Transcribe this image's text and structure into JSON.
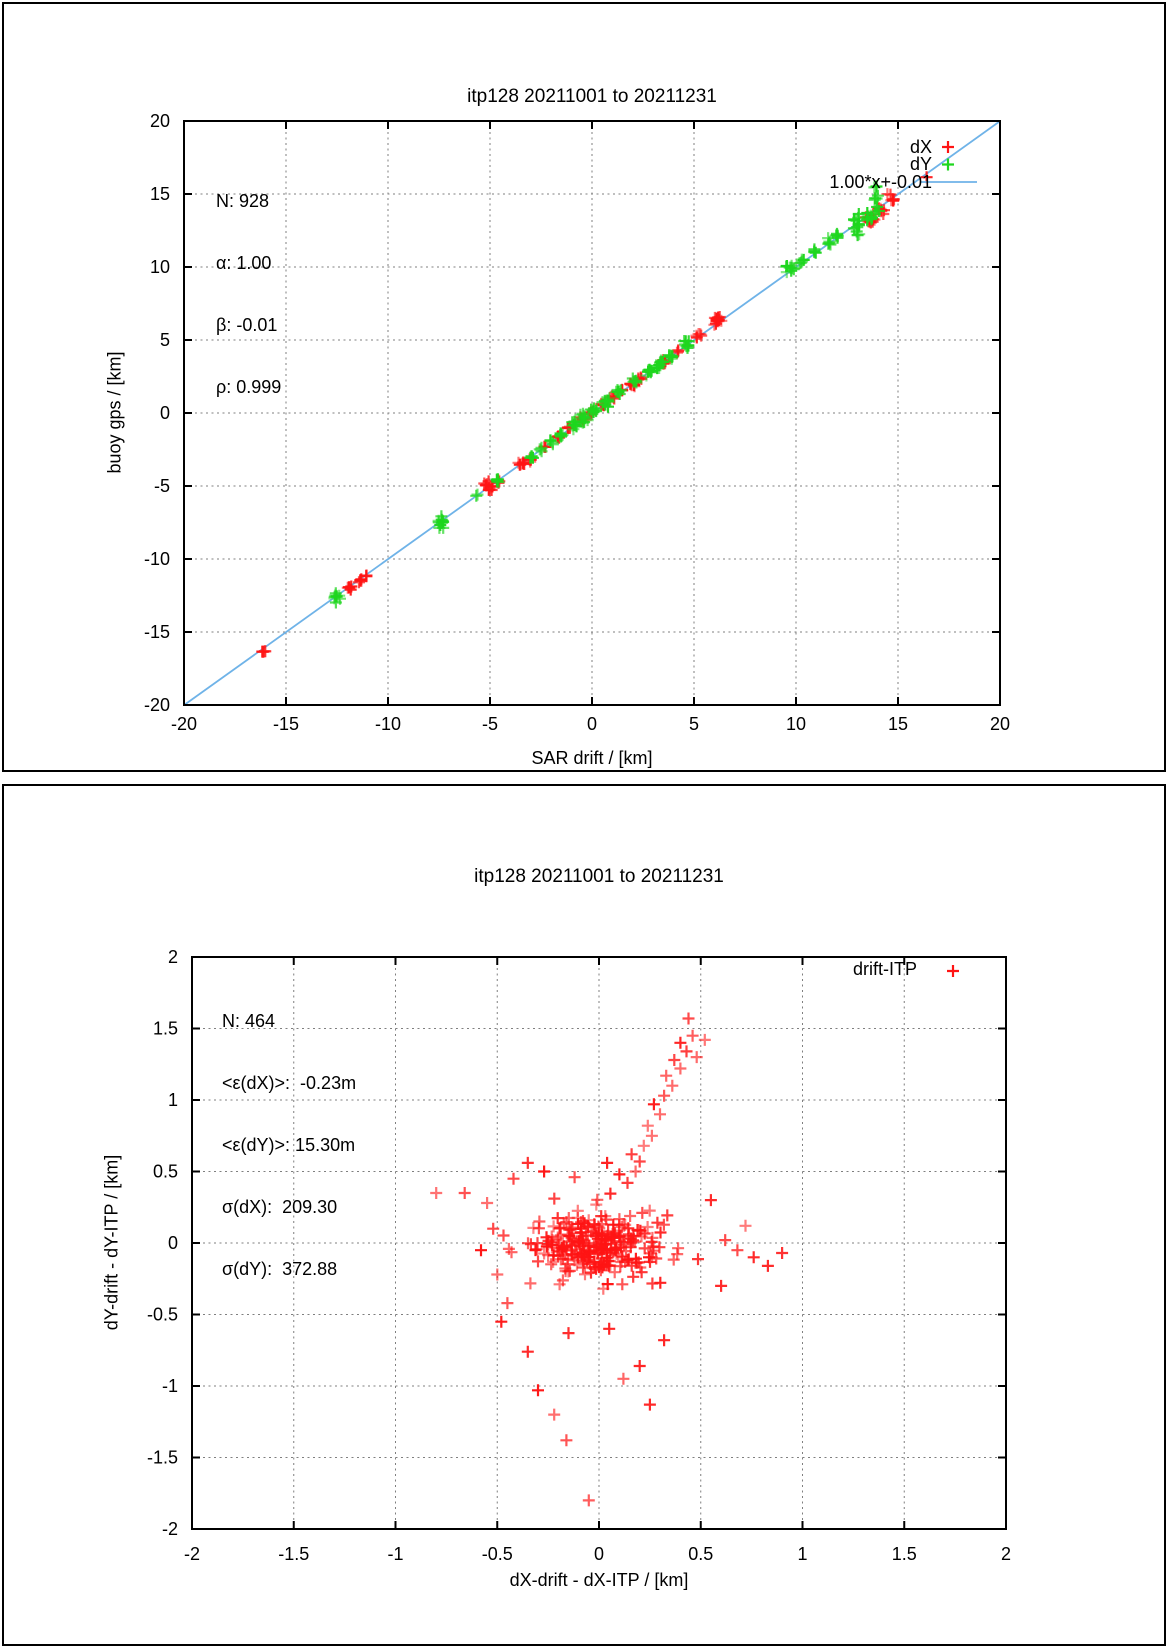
{
  "page": {
    "background": "#ffffff",
    "border_color": "#000000"
  },
  "colors": {
    "red": "#ff1414",
    "green": "#1ed61e",
    "fit": "#6fb3e8",
    "grid": "#7f7f7f",
    "axis": "#000000",
    "text": "#000000"
  },
  "chart_data": [
    {
      "type": "scatter",
      "title": "itp128 20211001 to 20211231",
      "xlabel": "SAR drift / [km]",
      "ylabel": "buoy gps / [km]",
      "xlim": [
        -20,
        20
      ],
      "ylim": [
        -20,
        20
      ],
      "xticks": [
        -20,
        -15,
        -10,
        -5,
        0,
        5,
        10,
        15,
        20
      ],
      "yticks": [
        -20,
        -15,
        -10,
        -5,
        0,
        5,
        10,
        15,
        20
      ],
      "grid": true,
      "stats": [
        "N: 928",
        "α: 1.00",
        "β: -0.01",
        "ρ: 0.999"
      ],
      "legend": [
        {
          "label": "dX",
          "color_key": "red",
          "sample": "point"
        },
        {
          "label": "dY",
          "color_key": "green",
          "sample": "point"
        },
        {
          "label": "1.00*x+-0.01",
          "color_key": "fit",
          "sample": "line"
        }
      ],
      "fit_line": {
        "slope": 1.0,
        "intercept": -0.01
      },
      "series": [
        {
          "name": "dX",
          "color_key": "red",
          "clusters": [
            [
              -16.1,
              -16.3,
              4,
              0.15,
              0.2
            ],
            [
              -11.9,
              -12.0,
              6,
              0.2,
              0.25
            ],
            [
              -11.4,
              -11.5,
              5,
              0.2,
              0.2
            ],
            [
              -11.05,
              -11.1,
              3,
              0.1,
              0.15
            ],
            [
              -5.05,
              -5.0,
              12,
              0.3,
              0.35
            ],
            [
              -4.6,
              -4.75,
              4,
              0.15,
              0.2
            ],
            [
              -3.5,
              -3.45,
              7,
              0.25,
              0.2
            ],
            [
              -3.1,
              -3.2,
              4,
              0.15,
              0.15
            ],
            [
              -2.3,
              -2.3,
              3,
              0.1,
              0.15
            ],
            [
              -1.7,
              -1.7,
              3,
              0.12,
              0.12
            ],
            [
              -1.1,
              -1.05,
              4,
              0.15,
              0.15
            ],
            [
              -0.5,
              -0.45,
              5,
              0.15,
              0.2
            ],
            [
              0.0,
              0.05,
              5,
              0.2,
              0.2
            ],
            [
              0.5,
              0.55,
              5,
              0.15,
              0.2
            ],
            [
              1.0,
              1.05,
              5,
              0.2,
              0.2
            ],
            [
              1.5,
              1.55,
              4,
              0.15,
              0.15
            ],
            [
              1.95,
              2.0,
              6,
              0.2,
              0.25
            ],
            [
              2.35,
              2.4,
              4,
              0.15,
              0.15
            ],
            [
              3.45,
              3.5,
              5,
              0.2,
              0.25
            ],
            [
              4.2,
              4.25,
              4,
              0.15,
              0.2
            ],
            [
              5.3,
              5.35,
              5,
              0.2,
              0.25
            ],
            [
              6.2,
              6.3,
              14,
              0.3,
              0.35
            ],
            [
              13.6,
              13.3,
              12,
              0.35,
              0.45
            ],
            [
              14.2,
              13.9,
              6,
              0.25,
              0.3
            ],
            [
              14.75,
              14.55,
              5,
              0.2,
              0.3
            ],
            [
              14.55,
              14.95,
              2,
              0.1,
              0.1
            ],
            [
              16.4,
              16.15,
              1,
              0,
              0
            ]
          ],
          "points": []
        },
        {
          "name": "dY",
          "color_key": "green",
          "clusters": [
            [
              -12.55,
              -12.65,
              9,
              0.2,
              0.45
            ],
            [
              -7.4,
              -7.5,
              11,
              0.2,
              0.5
            ],
            [
              -5.6,
              -5.6,
              2,
              0.1,
              0.15
            ],
            [
              -4.65,
              -4.7,
              6,
              0.15,
              0.3
            ],
            [
              -3.0,
              -3.05,
              4,
              0.12,
              0.2
            ],
            [
              -2.5,
              -2.5,
              4,
              0.12,
              0.2
            ],
            [
              -1.95,
              -1.95,
              4,
              0.12,
              0.2
            ],
            [
              -1.55,
              -1.55,
              6,
              0.15,
              0.3
            ],
            [
              -0.9,
              -0.85,
              9,
              0.2,
              0.35
            ],
            [
              -0.4,
              -0.35,
              11,
              0.2,
              0.35
            ],
            [
              0.1,
              0.15,
              9,
              0.2,
              0.3
            ],
            [
              0.7,
              0.75,
              11,
              0.2,
              0.35
            ],
            [
              1.3,
              1.35,
              7,
              0.15,
              0.3
            ],
            [
              2.1,
              2.15,
              6,
              0.15,
              0.25
            ],
            [
              2.8,
              2.85,
              9,
              0.2,
              0.35
            ],
            [
              3.3,
              3.35,
              11,
              0.2,
              0.4
            ],
            [
              3.9,
              3.95,
              7,
              0.15,
              0.3
            ],
            [
              4.7,
              4.75,
              9,
              0.2,
              0.35
            ],
            [
              9.7,
              9.9,
              9,
              0.2,
              0.4
            ],
            [
              10.25,
              10.45,
              5,
              0.15,
              0.3
            ],
            [
              10.9,
              11.0,
              4,
              0.12,
              0.25
            ],
            [
              11.6,
              11.7,
              6,
              0.15,
              0.3
            ],
            [
              12.0,
              12.15,
              5,
              0.12,
              0.25
            ],
            [
              12.95,
              12.9,
              14,
              0.3,
              0.8
            ],
            [
              13.6,
              13.4,
              8,
              0.25,
              0.6
            ],
            [
              13.95,
              14.3,
              8,
              0.2,
              0.8
            ],
            [
              13.9,
              15.45,
              2,
              0.1,
              0.15
            ]
          ],
          "points": []
        }
      ]
    },
    {
      "type": "scatter",
      "title": "itp128 20211001 to 20211231",
      "xlabel": "dX-drift - dX-ITP / [km]",
      "ylabel": "dY-drift - dY-ITP / [km]",
      "xlim": [
        -2,
        2
      ],
      "ylim": [
        -2,
        2
      ],
      "xticks": [
        -2,
        -1.5,
        -1,
        -0.5,
        0,
        0.5,
        1,
        1.5,
        2
      ],
      "yticks": [
        -2,
        -1.5,
        -1,
        -0.5,
        0,
        0.5,
        1,
        1.5,
        2
      ],
      "grid": true,
      "stats": [
        "N: 464",
        "<ε(dX)>:  -0.23m",
        "<ε(dY)>: 15.30m",
        "σ(dX):  209.30",
        "σ(dY):  372.88"
      ],
      "legend": [
        {
          "label": "drift-ITP",
          "color_key": "red",
          "sample": "point"
        }
      ],
      "series": [
        {
          "name": "drift-ITP",
          "color_key": "red",
          "clusters": [
            [
              -0.01,
              -0.02,
              150,
              0.28,
              0.22
            ],
            [
              0.0,
              0.0,
              80,
              0.5,
              0.38
            ],
            [
              0.02,
              -0.03,
              50,
              0.4,
              0.3
            ]
          ],
          "points": [
            [
              0.14,
              0.42
            ],
            [
              0.18,
              0.5
            ],
            [
              0.2,
              0.57
            ],
            [
              0.16,
              0.62
            ],
            [
              0.22,
              0.68
            ],
            [
              0.26,
              0.75
            ],
            [
              0.24,
              0.82
            ],
            [
              0.3,
              0.9
            ],
            [
              0.27,
              0.97
            ],
            [
              0.32,
              1.03
            ],
            [
              0.36,
              1.1
            ],
            [
              0.33,
              1.17
            ],
            [
              0.4,
              1.22
            ],
            [
              0.37,
              1.28
            ],
            [
              0.43,
              1.34
            ],
            [
              0.4,
              1.4
            ],
            [
              0.46,
              1.45
            ],
            [
              0.52,
              1.42
            ],
            [
              0.44,
              1.57
            ],
            [
              0.48,
              1.3
            ],
            [
              -0.8,
              0.35
            ],
            [
              -0.66,
              0.35
            ],
            [
              -0.55,
              0.28
            ],
            [
              -0.52,
              0.1
            ],
            [
              -0.58,
              -0.05
            ],
            [
              -0.5,
              -0.22
            ],
            [
              -0.45,
              -0.42
            ],
            [
              -0.42,
              0.45
            ],
            [
              0.55,
              0.3
            ],
            [
              0.62,
              0.02
            ],
            [
              0.68,
              -0.05
            ],
            [
              0.76,
              -0.1
            ],
            [
              0.9,
              -0.07
            ],
            [
              0.83,
              -0.16
            ],
            [
              0.6,
              -0.3
            ],
            [
              0.72,
              0.12
            ],
            [
              -0.05,
              -1.8
            ],
            [
              -0.16,
              -1.38
            ],
            [
              -0.22,
              -1.2
            ],
            [
              0.25,
              -1.13
            ],
            [
              -0.3,
              -1.03
            ],
            [
              0.12,
              -0.95
            ],
            [
              0.2,
              -0.86
            ],
            [
              -0.35,
              -0.76
            ],
            [
              0.32,
              -0.68
            ],
            [
              -0.15,
              -0.63
            ],
            [
              0.05,
              -0.6
            ],
            [
              -0.48,
              -0.55
            ],
            [
              -0.35,
              0.56
            ],
            [
              -0.27,
              0.5
            ],
            [
              0.04,
              0.56
            ],
            [
              -0.12,
              0.46
            ],
            [
              0.1,
              0.48
            ]
          ]
        }
      ]
    }
  ]
}
